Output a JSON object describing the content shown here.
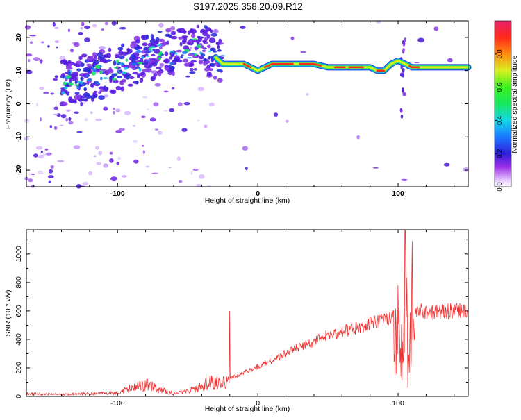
{
  "page": {
    "title": "S197.2025.358.20.09.R12"
  },
  "chart_data": [
    {
      "type": "heatmap",
      "xlabel": "Height of straight line (km)",
      "ylabel": "Frequency (Hz)",
      "xlim": [
        -165,
        150
      ],
      "ylim": [
        -25,
        25
      ],
      "x_ticks": [
        -100,
        0,
        100
      ],
      "y_ticks": [
        -20,
        -10,
        0,
        10,
        20
      ],
      "colorbar": {
        "label": "Normalized spectral amplitude",
        "range": [
          0,
          1
        ],
        "ticks": [
          0.0,
          0.2,
          0.4,
          0.6,
          0.8
        ],
        "tick_labels": [
          "0.0",
          "0.2",
          "0.4",
          "0.6",
          "0.8"
        ]
      },
      "ridge": {
        "x": [
          -140,
          -130,
          -120,
          -110,
          -100,
          -90,
          -80,
          -70,
          -60,
          -50,
          -40,
          -30,
          -25,
          -20,
          -10,
          0,
          10,
          20,
          30,
          40,
          50,
          60,
          70,
          80,
          85,
          90,
          95,
          100,
          105,
          110,
          120,
          130,
          140,
          150
        ],
        "frequency": [
          6,
          7,
          8,
          9,
          10,
          12,
          14,
          15,
          15,
          16,
          17,
          14,
          12,
          12,
          12,
          10,
          12,
          12,
          12,
          12,
          11,
          11,
          11,
          11,
          10,
          10,
          12,
          13,
          12,
          11,
          11,
          11,
          11,
          11
        ]
      }
    },
    {
      "type": "line",
      "xlabel": "Height of straight line (km)",
      "ylabel": "SNR (10 * v/v)",
      "xlim": [
        -165,
        150
      ],
      "ylim": [
        0,
        1170
      ],
      "x_ticks": [
        -100,
        0,
        100
      ],
      "y_ticks": [
        0,
        200,
        400,
        600,
        800,
        1000
      ],
      "color": "#ee3030",
      "envelope": {
        "x": [
          -165,
          -140,
          -120,
          -100,
          -90,
          -80,
          -70,
          -60,
          -50,
          -40,
          -35,
          -30,
          -25,
          -20,
          -10,
          0,
          10,
          20,
          30,
          40,
          50,
          60,
          70,
          80,
          90,
          95,
          100,
          103,
          106,
          108,
          110,
          115,
          120,
          130,
          140,
          150
        ],
        "y": [
          30,
          20,
          30,
          40,
          90,
          130,
          70,
          30,
          60,
          110,
          150,
          140,
          140,
          140,
          180,
          230,
          280,
          330,
          380,
          420,
          470,
          500,
          530,
          560,
          590,
          600,
          650,
          700,
          900,
          600,
          650,
          660,
          650,
          650,
          660,
          670
        ]
      },
      "spikes": [
        {
          "x": -20,
          "y": 600
        },
        {
          "x": 100,
          "y": 780
        },
        {
          "x": 105,
          "y": 1170
        },
        {
          "x": 107,
          "y": 60
        },
        {
          "x": 110,
          "y": 1090
        }
      ]
    }
  ]
}
